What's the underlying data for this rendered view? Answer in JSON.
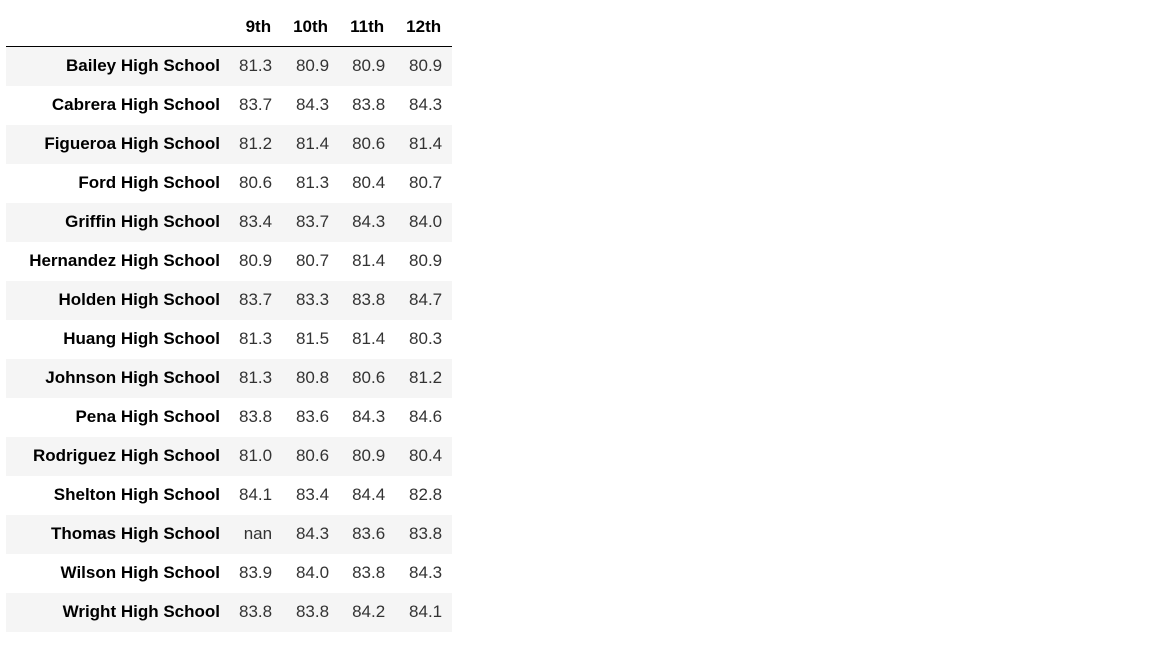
{
  "table": {
    "columns": [
      "9th",
      "10th",
      "11th",
      "12th"
    ],
    "rows": [
      {
        "school": "Bailey High School",
        "values": [
          "81.3",
          "80.9",
          "80.9",
          "80.9"
        ]
      },
      {
        "school": "Cabrera High School",
        "values": [
          "83.7",
          "84.3",
          "83.8",
          "84.3"
        ]
      },
      {
        "school": "Figueroa High School",
        "values": [
          "81.2",
          "81.4",
          "80.6",
          "81.4"
        ]
      },
      {
        "school": "Ford High School",
        "values": [
          "80.6",
          "81.3",
          "80.4",
          "80.7"
        ]
      },
      {
        "school": "Griffin High School",
        "values": [
          "83.4",
          "83.7",
          "84.3",
          "84.0"
        ]
      },
      {
        "school": "Hernandez High School",
        "values": [
          "80.9",
          "80.7",
          "81.4",
          "80.9"
        ]
      },
      {
        "school": "Holden High School",
        "values": [
          "83.7",
          "83.3",
          "83.8",
          "84.7"
        ]
      },
      {
        "school": "Huang High School",
        "values": [
          "81.3",
          "81.5",
          "81.4",
          "80.3"
        ]
      },
      {
        "school": "Johnson High School",
        "values": [
          "81.3",
          "80.8",
          "80.6",
          "81.2"
        ]
      },
      {
        "school": "Pena High School",
        "values": [
          "83.8",
          "83.6",
          "84.3",
          "84.6"
        ]
      },
      {
        "school": "Rodriguez High School",
        "values": [
          "81.0",
          "80.6",
          "80.9",
          "80.4"
        ]
      },
      {
        "school": "Shelton High School",
        "values": [
          "84.1",
          "83.4",
          "84.4",
          "82.8"
        ]
      },
      {
        "school": "Thomas High School",
        "values": [
          "nan",
          "84.3",
          "83.6",
          "83.8"
        ]
      },
      {
        "school": "Wilson High School",
        "values": [
          "83.9",
          "84.0",
          "83.8",
          "84.3"
        ]
      },
      {
        "school": "Wright High School",
        "values": [
          "83.8",
          "83.8",
          "84.2",
          "84.1"
        ]
      }
    ]
  },
  "colors": {
    "stripe": "#f5f5f5",
    "header_rule": "#000000",
    "cell_text": "#333333"
  }
}
